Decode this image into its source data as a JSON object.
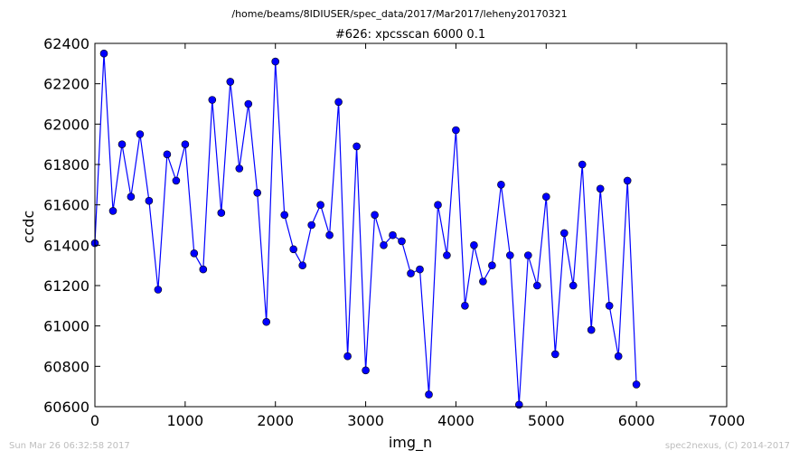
{
  "chart_data": {
    "type": "line",
    "suptitle": "/home/beams/8IDIUSER/spec_data/2017/Mar2017/leheny20170321",
    "title": "#626: xpcsscan 6000 0.1",
    "xlabel": "img_n",
    "ylabel": "ccdc",
    "xlim": [
      0,
      7000
    ],
    "ylim": [
      60600,
      62400
    ],
    "xticks": [
      0,
      1000,
      2000,
      3000,
      4000,
      5000,
      6000,
      7000
    ],
    "yticks": [
      60600,
      60800,
      61000,
      61200,
      61400,
      61600,
      61800,
      62000,
      62200,
      62400
    ],
    "grid": false,
    "line_color": "#0000ff",
    "marker": "circle",
    "series": [
      {
        "x": [
          0,
          100,
          200,
          300,
          400,
          500,
          600,
          700,
          800,
          900,
          1000,
          1100,
          1200,
          1300,
          1400,
          1500,
          1600,
          1700,
          1800,
          1900,
          2000,
          2100,
          2200,
          2300,
          2400,
          2500,
          2600,
          2700,
          2800,
          2900,
          3000,
          3100,
          3200,
          3300,
          3400,
          3500,
          3600,
          3700,
          3800,
          3900,
          4000,
          4100,
          4200,
          4300,
          4400,
          4500,
          4600,
          4700,
          4800,
          4900,
          5000,
          5100,
          5200,
          5300,
          5400,
          5500,
          5600,
          5700,
          5800,
          5900,
          6000
        ],
        "y": [
          61410,
          62350,
          61570,
          61900,
          61640,
          61950,
          61620,
          61180,
          61850,
          61720,
          61900,
          61360,
          61280,
          62120,
          61560,
          62210,
          61780,
          62100,
          61660,
          61020,
          62310,
          61550,
          61380,
          61300,
          61500,
          61600,
          61450,
          62110,
          60850,
          61890,
          60780,
          61550,
          61400,
          61450,
          61420,
          61260,
          61280,
          60660,
          61600,
          61350,
          61970,
          61100,
          61400,
          61220,
          61300,
          61700,
          61350,
          60610,
          61350,
          61200,
          61640,
          60860,
          61460,
          61200,
          61800,
          60980,
          61680,
          61100,
          60850,
          61720,
          60710
        ]
      }
    ],
    "footer_left": "Sun Mar 26 06:32:58 2017",
    "footer_right": "spec2nexus, (C) 2014-2017"
  }
}
